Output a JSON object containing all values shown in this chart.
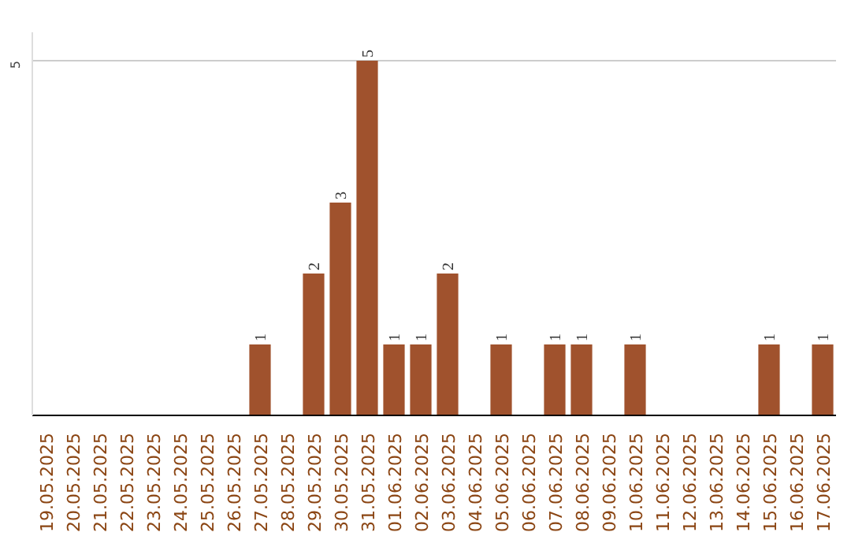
{
  "chart_data": {
    "type": "bar",
    "categories": [
      "19.05.2025",
      "20.05.2025",
      "21.05.2025",
      "22.05.2025",
      "23.05.2025",
      "24.05.2025",
      "25.05.2025",
      "26.05.2025",
      "27.05.2025",
      "28.05.2025",
      "29.05.2025",
      "30.05.2025",
      "31.05.2025",
      "01.06.2025",
      "02.06.2025",
      "03.06.2025",
      "04.06.2025",
      "05.06.2025",
      "06.06.2025",
      "07.06.2025",
      "08.06.2025",
      "09.06.2025",
      "10.06.2025",
      "11.06.2025",
      "12.06.2025",
      "13.06.2025",
      "14.06.2025",
      "15.06.2025",
      "16.06.2025",
      "17.06.2025"
    ],
    "values": [
      0,
      0,
      0,
      0,
      0,
      0,
      0,
      0,
      1,
      0,
      2,
      3,
      5,
      1,
      1,
      2,
      0,
      1,
      0,
      1,
      1,
      0,
      1,
      0,
      0,
      0,
      0,
      1,
      0,
      1
    ],
    "value_labels": [
      null,
      null,
      null,
      null,
      null,
      null,
      null,
      null,
      "1",
      null,
      "2",
      "3",
      "5",
      "1",
      "1",
      "2",
      null,
      "1",
      null,
      "1",
      "1",
      null,
      "1",
      null,
      null,
      null,
      null,
      "1",
      null,
      "1"
    ],
    "color": "#a0522d",
    "ylim": [
      0,
      5.4
    ],
    "yticks": [
      {
        "value": 0,
        "label": null
      },
      5
    ],
    "grid": "y",
    "legend": false
  }
}
